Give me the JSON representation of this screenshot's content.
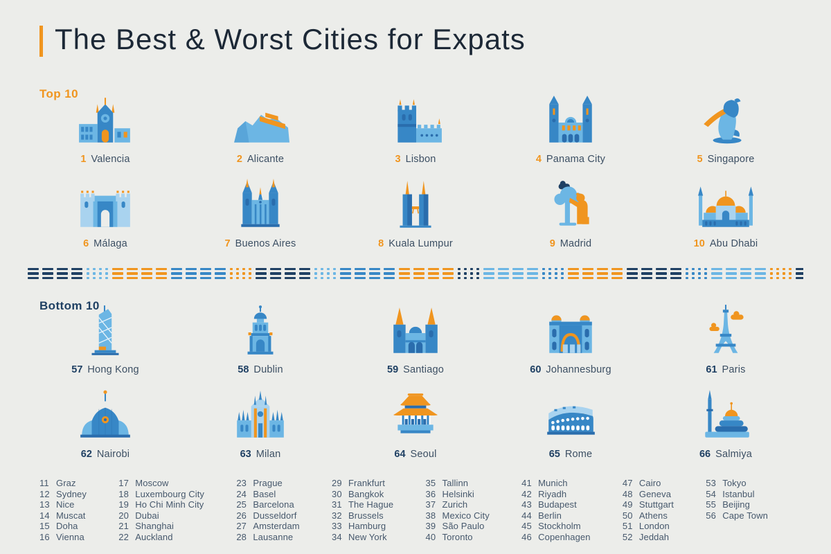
{
  "title": "The Best & Worst Cities for Expats",
  "colors": {
    "background": "#ecedea",
    "accent_orange": "#f0951f",
    "navy": "#1f4063",
    "title_text": "#1c2836",
    "body_text": "#46586c",
    "icon_pale_blue": "#a9d3ef",
    "icon_light_blue": "#6cb6e4",
    "icon_mid_blue": "#3787c6",
    "icon_dark_blue": "#2a6dad"
  },
  "top_section": {
    "label": "Top 10",
    "cities": [
      {
        "rank": "1",
        "name": "Valencia",
        "icon": "valencia-cathedral-icon"
      },
      {
        "rank": "2",
        "name": "Alicante",
        "icon": "alicante-castle-hill-icon"
      },
      {
        "rank": "3",
        "name": "Lisbon",
        "icon": "lisbon-belem-tower-icon"
      },
      {
        "rank": "4",
        "name": "Panama City",
        "icon": "panama-city-cathedral-icon"
      },
      {
        "rank": "5",
        "name": "Singapore",
        "icon": "singapore-merlion-icon"
      },
      {
        "rank": "6",
        "name": "Málaga",
        "icon": "malaga-gate-icon"
      },
      {
        "rank": "7",
        "name": "Buenos Aires",
        "icon": "buenos-aires-cathedral-icon"
      },
      {
        "rank": "8",
        "name": "Kuala Lumpur",
        "icon": "kuala-lumpur-petronas-icon"
      },
      {
        "rank": "9",
        "name": "Madrid",
        "icon": "madrid-bear-tree-icon"
      },
      {
        "rank": "10",
        "name": "Abu Dhabi",
        "icon": "abu-dhabi-mosque-icon"
      }
    ]
  },
  "bottom_section": {
    "label": "Bottom 10",
    "cities": [
      {
        "rank": "57",
        "name": "Hong Kong",
        "icon": "hong-kong-tower-icon"
      },
      {
        "rank": "58",
        "name": "Dublin",
        "icon": "dublin-campanile-icon"
      },
      {
        "rank": "59",
        "name": "Santiago",
        "icon": "santiago-cathedral-icon"
      },
      {
        "rank": "60",
        "name": "Johannesburg",
        "icon": "johannesburg-building-icon"
      },
      {
        "rank": "61",
        "name": "Paris",
        "icon": "paris-eiffel-icon"
      },
      {
        "rank": "62",
        "name": "Nairobi",
        "icon": "nairobi-kicc-icon"
      },
      {
        "rank": "63",
        "name": "Milan",
        "icon": "milan-duomo-icon"
      },
      {
        "rank": "64",
        "name": "Seoul",
        "icon": "seoul-gate-icon"
      },
      {
        "rank": "65",
        "name": "Rome",
        "icon": "rome-colosseum-icon"
      },
      {
        "rank": "66",
        "name": "Salmiya",
        "icon": "salmiya-mosque-icon"
      }
    ]
  },
  "middle_list": {
    "columns": [
      [
        {
          "rank": "11",
          "name": "Graz"
        },
        {
          "rank": "12",
          "name": "Sydney"
        },
        {
          "rank": "13",
          "name": "Nice"
        },
        {
          "rank": "14",
          "name": "Muscat"
        },
        {
          "rank": "15",
          "name": "Doha"
        },
        {
          "rank": "16",
          "name": "Vienna"
        }
      ],
      [
        {
          "rank": "17",
          "name": "Moscow"
        },
        {
          "rank": "18",
          "name": "Luxembourg City"
        },
        {
          "rank": "19",
          "name": "Ho Chi Minh City"
        },
        {
          "rank": "20",
          "name": "Dubai"
        },
        {
          "rank": "21",
          "name": "Shanghai"
        },
        {
          "rank": "22",
          "name": "Auckland"
        }
      ],
      [
        {
          "rank": "23",
          "name": "Prague"
        },
        {
          "rank": "24",
          "name": "Basel"
        },
        {
          "rank": "25",
          "name": "Barcelona"
        },
        {
          "rank": "26",
          "name": "Dusseldorf"
        },
        {
          "rank": "27",
          "name": "Amsterdam"
        },
        {
          "rank": "28",
          "name": "Lausanne"
        }
      ],
      [
        {
          "rank": "29",
          "name": "Frankfurt"
        },
        {
          "rank": "30",
          "name": "Bangkok"
        },
        {
          "rank": "31",
          "name": "The Hague"
        },
        {
          "rank": "32",
          "name": "Brussels"
        },
        {
          "rank": "33",
          "name": "Hamburg"
        },
        {
          "rank": "34",
          "name": "New York"
        }
      ],
      [
        {
          "rank": "35",
          "name": "Tallinn"
        },
        {
          "rank": "36",
          "name": "Helsinki"
        },
        {
          "rank": "37",
          "name": "Zurich"
        },
        {
          "rank": "38",
          "name": "Mexico City"
        },
        {
          "rank": "39",
          "name": "São Paulo"
        },
        {
          "rank": "40",
          "name": "Toronto"
        }
      ],
      [
        {
          "rank": "41",
          "name": "Munich"
        },
        {
          "rank": "42",
          "name": "Riyadh"
        },
        {
          "rank": "43",
          "name": "Budapest"
        },
        {
          "rank": "44",
          "name": "Berlin"
        },
        {
          "rank": "45",
          "name": "Stockholm"
        },
        {
          "rank": "46",
          "name": "Copenhagen"
        }
      ],
      [
        {
          "rank": "47",
          "name": "Cairo"
        },
        {
          "rank": "48",
          "name": "Geneva"
        },
        {
          "rank": "49",
          "name": "Stuttgart"
        },
        {
          "rank": "50",
          "name": "Athens"
        },
        {
          "rank": "51",
          "name": "London"
        },
        {
          "rank": "52",
          "name": "Jeddah"
        }
      ],
      [
        {
          "rank": "53",
          "name": "Tokyo"
        },
        {
          "rank": "54",
          "name": "Istanbul"
        },
        {
          "rank": "55",
          "name": "Beijing"
        },
        {
          "rank": "56",
          "name": "Cape Town"
        }
      ]
    ]
  },
  "chart_data": {
    "type": "table",
    "title": "The Best & Worst Cities for Expats",
    "columns": [
      "rank",
      "city"
    ],
    "rows": [
      [
        1,
        "Valencia"
      ],
      [
        2,
        "Alicante"
      ],
      [
        3,
        "Lisbon"
      ],
      [
        4,
        "Panama City"
      ],
      [
        5,
        "Singapore"
      ],
      [
        6,
        "Málaga"
      ],
      [
        7,
        "Buenos Aires"
      ],
      [
        8,
        "Kuala Lumpur"
      ],
      [
        9,
        "Madrid"
      ],
      [
        10,
        "Abu Dhabi"
      ],
      [
        11,
        "Graz"
      ],
      [
        12,
        "Sydney"
      ],
      [
        13,
        "Nice"
      ],
      [
        14,
        "Muscat"
      ],
      [
        15,
        "Doha"
      ],
      [
        16,
        "Vienna"
      ],
      [
        17,
        "Moscow"
      ],
      [
        18,
        "Luxembourg City"
      ],
      [
        19,
        "Ho Chi Minh City"
      ],
      [
        20,
        "Dubai"
      ],
      [
        21,
        "Shanghai"
      ],
      [
        22,
        "Auckland"
      ],
      [
        23,
        "Prague"
      ],
      [
        24,
        "Basel"
      ],
      [
        25,
        "Barcelona"
      ],
      [
        26,
        "Dusseldorf"
      ],
      [
        27,
        "Amsterdam"
      ],
      [
        28,
        "Lausanne"
      ],
      [
        29,
        "Frankfurt"
      ],
      [
        30,
        "Bangkok"
      ],
      [
        31,
        "The Hague"
      ],
      [
        32,
        "Brussels"
      ],
      [
        33,
        "Hamburg"
      ],
      [
        34,
        "New York"
      ],
      [
        35,
        "Tallinn"
      ],
      [
        36,
        "Helsinki"
      ],
      [
        37,
        "Zurich"
      ],
      [
        38,
        "Mexico City"
      ],
      [
        39,
        "São Paulo"
      ],
      [
        40,
        "Toronto"
      ],
      [
        41,
        "Munich"
      ],
      [
        42,
        "Riyadh"
      ],
      [
        43,
        "Budapest"
      ],
      [
        44,
        "Berlin"
      ],
      [
        45,
        "Stockholm"
      ],
      [
        46,
        "Copenhagen"
      ],
      [
        47,
        "Cairo"
      ],
      [
        48,
        "Geneva"
      ],
      [
        49,
        "Stuttgart"
      ],
      [
        50,
        "Athens"
      ],
      [
        51,
        "London"
      ],
      [
        52,
        "Jeddah"
      ],
      [
        53,
        "Tokyo"
      ],
      [
        54,
        "Istanbul"
      ],
      [
        55,
        "Beijing"
      ],
      [
        56,
        "Cape Town"
      ],
      [
        57,
        "Hong Kong"
      ],
      [
        58,
        "Dublin"
      ],
      [
        59,
        "Santiago"
      ],
      [
        60,
        "Johannesburg"
      ],
      [
        61,
        "Paris"
      ],
      [
        62,
        "Nairobi"
      ],
      [
        63,
        "Milan"
      ],
      [
        64,
        "Seoul"
      ],
      [
        65,
        "Rome"
      ],
      [
        66,
        "Salmiya"
      ]
    ]
  }
}
